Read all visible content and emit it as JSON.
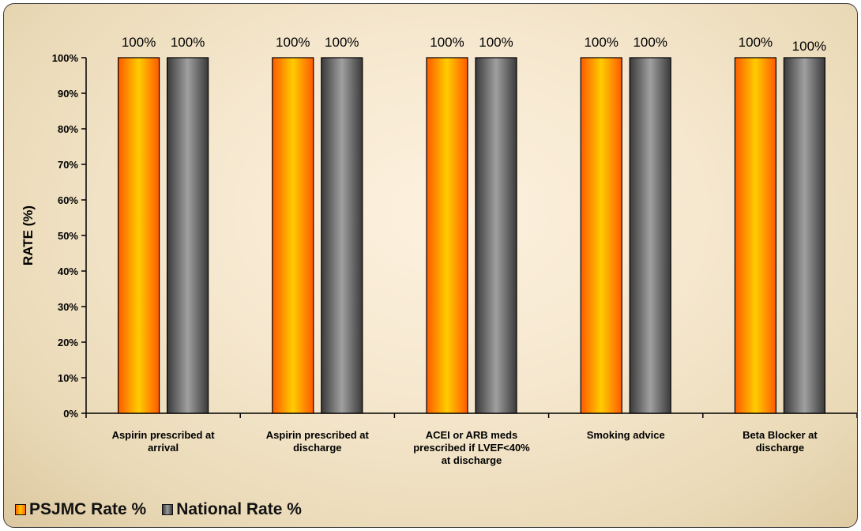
{
  "chart_data": {
    "type": "bar",
    "title": "",
    "xlabel": "",
    "ylabel": "RATE (%)",
    "ylim": [
      0,
      100
    ],
    "yticks": [
      "0%",
      "10%",
      "20%",
      "30%",
      "40%",
      "50%",
      "60%",
      "70%",
      "80%",
      "90%",
      "100%"
    ],
    "categories": [
      [
        "Aspirin prescribed at",
        "arrival"
      ],
      [
        "Aspirin prescribed at",
        "discharge"
      ],
      [
        "ACEI or ARB meds",
        "prescribed if LVEF<40%",
        "at discharge"
      ],
      [
        "Smoking advice"
      ],
      [
        "Beta Blocker at",
        "discharge"
      ]
    ],
    "series": [
      {
        "name": "PSJMC Rate %",
        "values": [
          100,
          100,
          100,
          100,
          100
        ],
        "labels": [
          "100%",
          "100%",
          "100%",
          "100%",
          "100%"
        ],
        "color": "#ff9900"
      },
      {
        "name": "National Rate %",
        "values": [
          100,
          100,
          100,
          100,
          100
        ],
        "labels": [
          "100%",
          "100%",
          "100%",
          "100%",
          "100%"
        ],
        "color": "#808080"
      }
    ],
    "grid": false,
    "legend": "bottom-left"
  },
  "legend": {
    "items": [
      {
        "label": "PSJMC Rate %"
      },
      {
        "label": "National Rate %"
      }
    ]
  }
}
